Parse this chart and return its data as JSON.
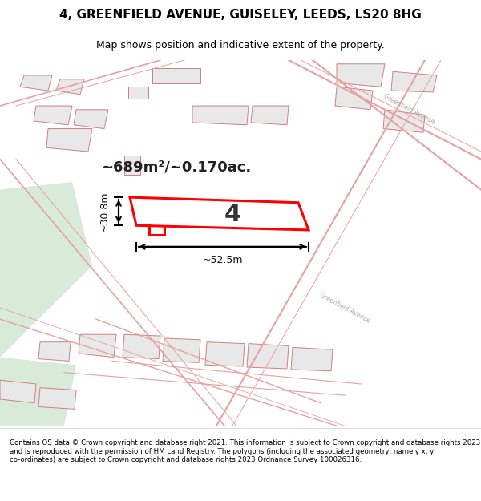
{
  "title_line1": "4, GREENFIELD AVENUE, GUISELEY, LEEDS, LS20 8HG",
  "title_line2": "Map shows position and indicative extent of the property.",
  "footer_text": "Contains OS data © Crown copyright and database right 2021. This information is subject to Crown copyright and database rights 2023 and is reproduced with the permission of HM Land Registry. The polygons (including the associated geometry, namely x, y co-ordinates) are subject to Crown copyright and database rights 2023 Ordnance Survey 100026316.",
  "area_label": "~689m²/~0.170ac.",
  "number_label": "4",
  "dim_width": "~52.5m",
  "dim_height": "~30.8m",
  "road_label_top": "Greenfield Avenue",
  "road_label_bottom": "Greenfield Avenue",
  "bg_color": "#ffffff",
  "map_bg": "#f8f8f8",
  "plot_color": "#ff0000",
  "light_green": "#d8ead8",
  "road_line_color": "#e8a0a0",
  "building_fill": "#e8e8e8",
  "building_outline": "#d08080"
}
